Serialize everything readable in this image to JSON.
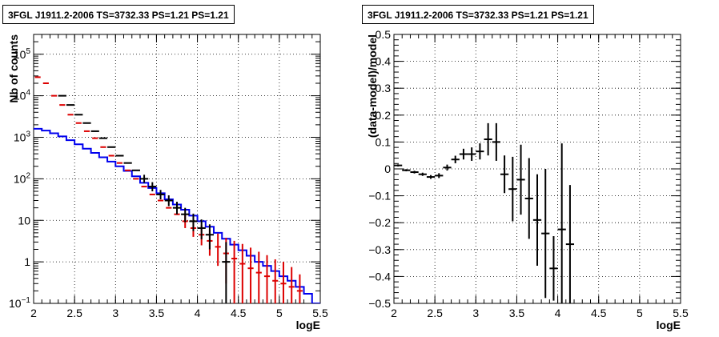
{
  "chart_data": [
    {
      "type": "line",
      "title": "3FGL J1911.2-2006 TS=3732.33 PS=1.21 PS=1.21",
      "xlabel": "logE",
      "ylabel": "Nb of counts",
      "xlim": [
        2,
        5.5
      ],
      "ylim": [
        0.1,
        300000
      ],
      "yscale": "log",
      "grid": true,
      "xticks": [
        "2",
        "2.5",
        "3",
        "3.5",
        "4",
        "4.5",
        "5",
        "5.5"
      ],
      "yticks": [
        "10^-1",
        "1",
        "10",
        "10^2",
        "10^3",
        "10^4",
        "10^5"
      ],
      "bin_edges": [
        2.0,
        2.1,
        2.2,
        2.3,
        2.4,
        2.5,
        2.6,
        2.7,
        2.8,
        2.9,
        3.0,
        3.1,
        3.2,
        3.3,
        3.4,
        3.5,
        3.6,
        3.7,
        3.8,
        3.9,
        4.0,
        4.1,
        4.2,
        4.3,
        4.4,
        4.5,
        4.6,
        4.7,
        4.8,
        4.9,
        5.0,
        5.1,
        5.2,
        5.3,
        5.4,
        5.5
      ],
      "series": [
        {
          "color": "#dd0000",
          "style": "step-with-errors",
          "x": [
            2.05,
            2.15,
            2.25,
            2.35,
            2.45,
            2.55,
            2.65,
            2.75,
            2.85,
            2.95,
            3.05,
            3.15,
            3.25,
            3.35,
            3.45,
            3.55,
            3.65,
            3.75,
            3.85,
            3.95,
            4.05,
            4.15,
            4.25,
            4.35,
            4.45,
            4.55,
            4.65,
            4.75,
            4.85,
            4.95,
            5.05,
            5.15,
            5.25
          ],
          "y": [
            28000,
            20000,
            10000,
            6000,
            3500,
            2200,
            1400,
            950,
            580,
            360,
            240,
            160,
            100,
            65,
            42,
            30,
            20,
            14,
            9.5,
            6.5,
            4.5,
            3.2,
            2.3,
            1.6,
            1.2,
            0.9,
            0.7,
            0.55,
            0.45,
            0.35,
            0.3,
            0.25,
            0.2
          ],
          "yerr_low": [
            0,
            0,
            0,
            0,
            0,
            0,
            0,
            0,
            0,
            0,
            0,
            0,
            0,
            0,
            0,
            0,
            0,
            0,
            3,
            2.5,
            2,
            1.8,
            1.5,
            1.3,
            1.1,
            0.8,
            0.6,
            0.45,
            0.35,
            0.25,
            0.2,
            0.15,
            0.1
          ],
          "yerr_high": [
            0,
            0,
            0,
            0,
            0,
            0,
            0,
            0,
            0,
            0,
            0,
            0,
            0,
            0,
            0,
            0,
            0,
            0,
            4,
            3.5,
            3,
            2.8,
            2.5,
            2.2,
            2,
            1.8,
            1.5,
            1.2,
            1,
            0.8,
            0.7,
            0.5,
            0.3
          ]
        },
        {
          "color": "#000000",
          "style": "errorbar",
          "x": [
            2.35,
            2.45,
            2.55,
            2.65,
            2.75,
            2.85,
            2.95,
            3.05,
            3.15,
            3.25,
            3.35,
            3.45,
            3.55,
            3.65,
            3.75,
            3.85,
            3.95,
            4.05,
            4.15,
            4.35
          ],
          "y": [
            10000,
            6000,
            3500,
            2200,
            1400,
            950,
            580,
            360,
            240,
            160,
            100,
            65,
            42,
            30,
            20,
            14,
            9.5,
            6.5,
            4.5,
            1
          ],
          "yerr_low": [
            0,
            0,
            0,
            0,
            0,
            0,
            0,
            0,
            0,
            0,
            20,
            15,
            10,
            8,
            6,
            5,
            4,
            3,
            2.5,
            0.9
          ],
          "yerr_high": [
            0,
            0,
            0,
            0,
            0,
            0,
            0,
            0,
            0,
            0,
            25,
            18,
            12,
            10,
            8,
            6,
            5,
            4,
            3.5,
            2
          ]
        },
        {
          "color": "#0000ee",
          "style": "step",
          "y": [
            1600,
            1450,
            1250,
            1050,
            850,
            680,
            530,
            420,
            330,
            260,
            200,
            155,
            115,
            80,
            60,
            45,
            32,
            24,
            18,
            13,
            9.5,
            7,
            5,
            3.6,
            2.6,
            1.9,
            1.4,
            1,
            0.8,
            0.6,
            0.45,
            0.35,
            0.25,
            0.17,
            0.1
          ]
        }
      ]
    },
    {
      "type": "scatter",
      "title": "3FGL J1911.2-2006 TS=3732.33 PS=1.21 PS=1.21",
      "xlabel": "logE",
      "ylabel": "(data-model)/model",
      "xlim": [
        2,
        5.5
      ],
      "ylim": [
        -0.5,
        0.5
      ],
      "grid": true,
      "xticks": [
        "2",
        "2.5",
        "3",
        "3.5",
        "4",
        "4.5",
        "5",
        "5.5"
      ],
      "yticks": [
        "-0.5",
        "-0.4",
        "-0.3",
        "-0.2",
        "-0.1",
        "0",
        "0.1",
        "0.2",
        "0.3",
        "0.4",
        "0.5"
      ],
      "series": [
        {
          "color": "#000000",
          "x": [
            2.05,
            2.15,
            2.25,
            2.35,
            2.45,
            2.55,
            2.65,
            2.75,
            2.85,
            2.95,
            3.05,
            3.15,
            3.25,
            3.35,
            3.45,
            3.55,
            3.65,
            3.75,
            3.85,
            3.95,
            4.05,
            4.15
          ],
          "y": [
            0.013,
            -0.005,
            -0.012,
            -0.02,
            -0.03,
            -0.025,
            0.005,
            0.035,
            0.055,
            0.055,
            0.065,
            0.11,
            0.1,
            -0.02,
            -0.075,
            -0.04,
            -0.11,
            -0.19,
            -0.24,
            -0.37,
            -0.225,
            -0.28
          ],
          "yerr": [
            0.004,
            0.004,
            0.005,
            0.006,
            0.007,
            0.009,
            0.011,
            0.014,
            0.02,
            0.025,
            0.03,
            0.06,
            0.07,
            0.07,
            0.12,
            0.13,
            0.15,
            0.17,
            0.24,
            0.12,
            0.32,
            0.22
          ]
        }
      ]
    }
  ]
}
